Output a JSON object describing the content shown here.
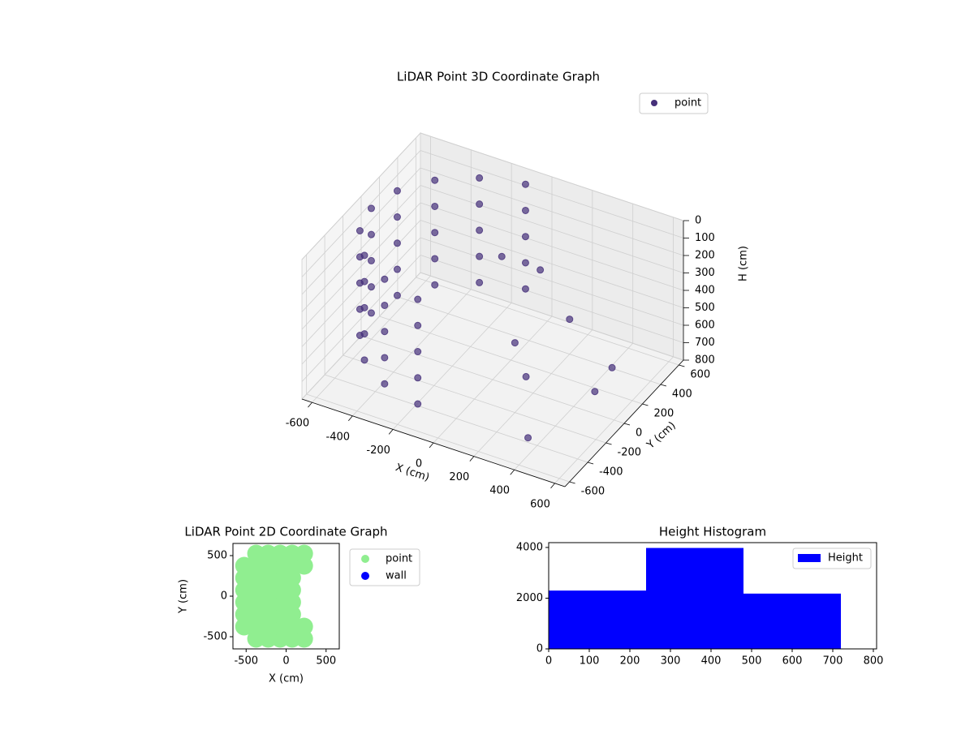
{
  "chart_data": [
    {
      "type": "scatter3d",
      "title": "LiDAR Point 3D Coordinate Graph",
      "xlabel": "X (cm)",
      "ylabel": "Y (cm)",
      "zlabel": "H (cm)",
      "xlim": [
        -650,
        650
      ],
      "ylim": [
        -650,
        650
      ],
      "zlim": [
        800,
        0
      ],
      "xticks": [
        -600,
        -400,
        -200,
        0,
        200,
        400,
        600
      ],
      "yticks": [
        -600,
        -400,
        -200,
        0,
        200,
        400,
        600
      ],
      "zticks": [
        0,
        100,
        200,
        300,
        400,
        500,
        600,
        700,
        800
      ],
      "grid": true,
      "legend": "upper right",
      "series": [
        {
          "name": "point",
          "color": "#46307a",
          "x": [
            -104,
            -300,
            -460,
            -564,
            -600,
            -564,
            -460,
            -300,
            -104,
            -104,
            -300,
            -460,
            -564,
            -600,
            -564,
            -460,
            -300,
            -104,
            -104,
            -300,
            -460,
            -564,
            -600,
            -564,
            -460,
            -300,
            -104,
            -104,
            -300,
            -460,
            -564,
            -600,
            -564,
            -460,
            -300,
            -104,
            -104,
            -300,
            -460,
            -564,
            -600,
            -564,
            -460,
            -300,
            -104,
            100,
            200,
            500,
            550,
            300,
            400,
            200,
            0
          ],
          "y": [
            591,
            520,
            386,
            205,
            0,
            -205,
            -386,
            -520,
            -591,
            591,
            520,
            386,
            205,
            0,
            -205,
            -386,
            -520,
            -591,
            591,
            520,
            386,
            205,
            0,
            -205,
            -386,
            -520,
            -591,
            591,
            520,
            386,
            205,
            0,
            -205,
            -386,
            -520,
            -591,
            591,
            520,
            386,
            205,
            0,
            -205,
            -386,
            -520,
            -591,
            300,
            400,
            200,
            -100,
            -300,
            -500,
            -200,
            100
          ],
          "z": [
            50,
            50,
            50,
            50,
            50,
            50,
            50,
            50,
            50,
            200,
            200,
            200,
            200,
            200,
            200,
            200,
            200,
            200,
            350,
            350,
            350,
            350,
            350,
            350,
            350,
            350,
            350,
            500,
            500,
            500,
            500,
            500,
            500,
            500,
            500,
            500,
            650,
            650,
            650,
            650,
            650,
            650,
            650,
            650,
            650,
            300,
            600,
            650,
            600,
            500,
            700,
            400,
            150
          ]
        }
      ]
    },
    {
      "type": "scatter",
      "title": "LiDAR Point 2D Coordinate Graph",
      "xlabel": "X (cm)",
      "ylabel": "Y (cm)",
      "xlim": [
        -665,
        665
      ],
      "ylim": [
        -650,
        650
      ],
      "xticks": [
        -500,
        0,
        500
      ],
      "yticks": [
        -500,
        0,
        500
      ],
      "legend": "outside right",
      "series": [
        {
          "name": "point",
          "color": "#90ee90",
          "x": [
            -525,
            -525,
            -525,
            -525,
            -525,
            -525,
            -375,
            -375,
            -375,
            -375,
            -375,
            -375,
            -375,
            -375,
            -225,
            -225,
            -225,
            -225,
            -225,
            -225,
            -225,
            -225,
            -75,
            -75,
            -75,
            -75,
            -75,
            -75,
            -75,
            -75,
            75,
            75,
            75,
            75,
            75,
            75,
            75,
            75,
            225,
            225,
            225,
            225
          ],
          "y": [
            -375,
            -225,
            -75,
            75,
            225,
            375,
            -525,
            -375,
            -225,
            -75,
            75,
            225,
            375,
            525,
            -525,
            -375,
            -225,
            -75,
            75,
            225,
            375,
            525,
            -525,
            -375,
            -225,
            -75,
            75,
            225,
            375,
            525,
            -525,
            -375,
            -225,
            -75,
            75,
            225,
            375,
            525,
            -525,
            -375,
            375,
            525
          ]
        },
        {
          "name": "wall",
          "color": "#0000ff",
          "x": [],
          "y": []
        }
      ]
    },
    {
      "type": "histogram",
      "title": "Height Histogram",
      "bins": [
        0,
        240,
        480,
        720
      ],
      "counts": [
        2300,
        3980,
        2180
      ],
      "xlim": [
        0,
        808
      ],
      "ylim": [
        0,
        4190
      ],
      "xticks": [
        0,
        100,
        200,
        300,
        400,
        500,
        600,
        700,
        800
      ],
      "yticks": [
        0,
        2000,
        4000
      ],
      "legend": "upper right",
      "series": [
        {
          "name": "Height",
          "color": "#0000ff"
        }
      ]
    }
  ]
}
